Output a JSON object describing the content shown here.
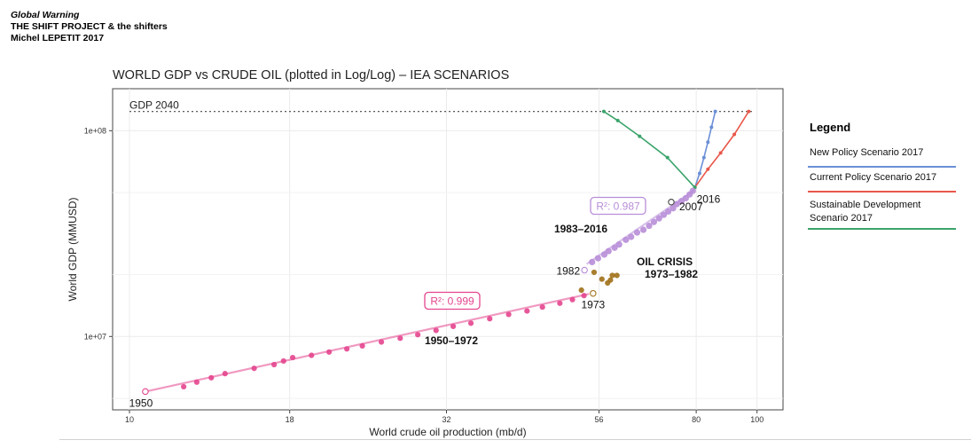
{
  "header": {
    "title": "Global Warning",
    "organization": "THE SHIFT PROJECT & the shifters",
    "author": "Michel LEPETIT 2017"
  },
  "legend": {
    "title": "Legend",
    "items": [
      {
        "label": "New Policy Scenario 2017",
        "color": "#6b8fd6"
      },
      {
        "label": "Current Policy Scenario 2017",
        "color": "#e8574a"
      },
      {
        "label": "Sustainable Development Scenario 2017",
        "color": "#3aa36a"
      }
    ]
  },
  "chart_data": {
    "type": "scatter",
    "title": "WORLD GDP vs CRUDE OIL (plotted in Log/Log) – IEA SCENARIOS",
    "xlabel": "World crude oil production (mb/d)",
    "ylabel": "World GDP (MMUSD)",
    "x_scale": "log",
    "y_scale": "log",
    "xlim": [
      9.4,
      110
    ],
    "ylim": [
      4400000,
      160000000
    ],
    "x_ticks": [
      10,
      18,
      32,
      56,
      80,
      100
    ],
    "x_tick_labels": [
      "10",
      "18",
      "32",
      "56",
      "80",
      "100"
    ],
    "y_ticks": [
      10000000,
      100000000
    ],
    "y_tick_labels": [
      "1e+07",
      "1e+08"
    ],
    "grid": true,
    "colors": {
      "s1950": "#e4458e",
      "s1983": "#b88ed8",
      "crisis": "#a07018",
      "gdp_ref": "#444444",
      "npd": "#6b8fd6",
      "cps": "#e8574a",
      "sds": "#3aa36a"
    },
    "reference_line": {
      "label": "GDP 2040",
      "y": 124000000
    },
    "series": [
      {
        "name": "1950–1972",
        "color_key": "s1950",
        "x": [
          12.2,
          12.8,
          13.5,
          14.2,
          15.8,
          17.0,
          17.6,
          18.2,
          19.5,
          20.8,
          22.2,
          23.5,
          25.2,
          27.0,
          28.8,
          30.8,
          32.8,
          35.0,
          37.5,
          40.2,
          43.0,
          45.5,
          48.5,
          50.8,
          53.0
        ],
        "y": [
          5700000.0,
          6000000.0,
          6300000.0,
          6600000.0,
          7000000.0,
          7300000.0,
          7600000.0,
          7900000.0,
          8100000.0,
          8400000.0,
          8700000.0,
          9000000.0,
          9400000.0,
          9800000.0,
          10200000.0,
          10700000.0,
          11200000.0,
          11600000.0,
          12200000.0,
          12800000.0,
          13300000.0,
          13900000.0,
          14500000.0,
          15100000.0,
          15800000.0
        ]
      },
      {
        "name": "1983–2016",
        "color_key": "s1983",
        "x": [
          54.6,
          55.8,
          57.1,
          58.0,
          59.3,
          60.3,
          61.8,
          63.0,
          64.4,
          65.9,
          67.3,
          68.5,
          69.8,
          71.0,
          72.2,
          73.5,
          74.5,
          75.8,
          77.0,
          78.1,
          79.0
        ],
        "y": [
          23000000.0,
          24000000.0,
          25000000.0,
          26000000.0,
          27000000.0,
          28000000.0,
          29500000.0,
          30500000.0,
          32000000.0,
          33000000.0,
          34500000.0,
          36000000.0,
          37500000.0,
          39000000.0,
          40500000.0,
          42000000.0,
          44000000.0,
          45500000.0,
          47000000.0,
          49000000.0,
          51000000.0
        ]
      },
      {
        "name": "OIL CRISIS 1973–1982",
        "color_key": "crisis",
        "x": [
          52.5,
          54.8,
          55.0,
          56.6,
          57.8,
          58.4,
          58.8,
          59.8
        ],
        "y": [
          16800000.0,
          16200000.0,
          20500000.0,
          19000000.0,
          18200000.0,
          18800000.0,
          19800000.0,
          19800000.0
        ]
      }
    ],
    "open_points": [
      {
        "label": "1950",
        "x": 10.6,
        "y": 5400000.0,
        "color_key": "s1950"
      },
      {
        "label": "1982",
        "x": 53.1,
        "y": 21000000.0,
        "color_key": "s1983"
      },
      {
        "label": "2007",
        "x": 73.0,
        "y": 45000000.0,
        "color_key": "gdp_ref"
      },
      {
        "label": "1973",
        "x": 54.8,
        "y": 16200000.0,
        "color_key": "crisis"
      }
    ],
    "fits": [
      {
        "name": "fit 1950-1972",
        "color_key": "s1950",
        "x": [
          10.6,
          54.0
        ],
        "y": [
          5400000.0,
          16100000.0
        ],
        "r2_label": "R²: 0.999"
      },
      {
        "name": "fit 1983-2016",
        "color_key": "s1983",
        "x": [
          53.5,
          79.5
        ],
        "y": [
          22500000.0,
          51500000.0
        ],
        "r2_label": "R²: 0.987"
      }
    ],
    "scenarios": [
      {
        "name": "New Policy Scenario 2017",
        "color_key": "npd",
        "x": [
          79.6,
          81.0,
          82.3,
          83.5,
          84.6,
          85.8
        ],
        "y": [
          53000000.0,
          62000000.0,
          74000000.0,
          88000000.0,
          104000000.0,
          124000000.0
        ]
      },
      {
        "name": "Current Policy Scenario 2017",
        "color_key": "cps",
        "x": [
          79.6,
          83.5,
          87.5,
          92.0,
          97.0
        ],
        "y": [
          53000000.0,
          65000000.0,
          78000000.0,
          96000000.0,
          124000000.0
        ]
      },
      {
        "name": "Sustainable Development Scenario 2017",
        "color_key": "sds",
        "x": [
          79.6,
          72.0,
          65.0,
          60.0,
          57.0
        ],
        "y": [
          53000000.0,
          74000000.0,
          94000000.0,
          112000000.0,
          124000000.0
        ]
      }
    ],
    "labels": {
      "gdp_2040": "GDP 2040",
      "y1950": "1950",
      "y1982": "1982",
      "y2007": "2007",
      "y2016": "2016",
      "y1973": "1973",
      "range_1950": "1950–1972",
      "range_1983": "1983–2016",
      "crisis": "OIL CRISIS",
      "crisis_years": "1973–1982"
    }
  }
}
